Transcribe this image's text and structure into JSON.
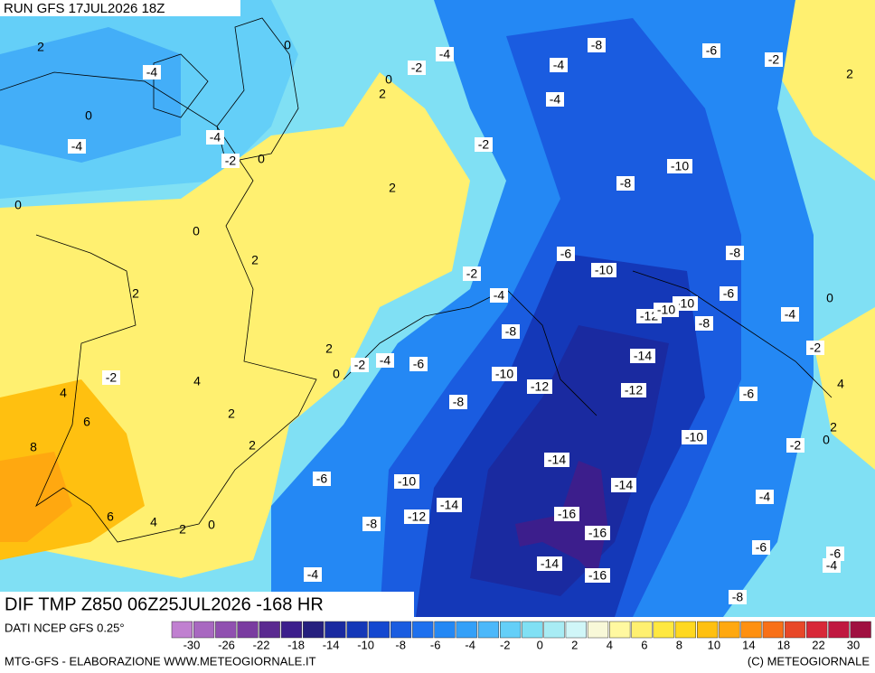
{
  "header": {
    "run": "RUN GFS 17JUL2026 18Z"
  },
  "map": {
    "title": "DIF TMP Z850 06Z25JUL2026 -168 HR",
    "contour_labels": [
      "2",
      "-4",
      "0",
      "-4",
      "-4",
      "-2",
      "0",
      "0",
      "0",
      "2",
      "-2",
      "-4",
      "-8",
      "-6",
      "-2",
      "2",
      "-4",
      "-4",
      "-2",
      "-10",
      "-8",
      "0",
      "2",
      "0",
      "2",
      "-6",
      "-8",
      "-10",
      "-2",
      "2",
      "-4",
      "-6",
      "-10",
      "-12",
      "-10",
      "0",
      "-4",
      "-8",
      "-8",
      "-2",
      "2",
      "-14",
      "0",
      "-2",
      "-4",
      "-6",
      "-10",
      "-2",
      "4",
      "4",
      "-12",
      "-12",
      "-6",
      "4",
      "2",
      "-8",
      "6",
      "2",
      "0",
      "-2",
      "-10",
      "2",
      "8",
      "-14",
      "-14",
      "-6",
      "-10",
      "-14",
      "-16",
      "-12",
      "-8",
      "6",
      "4",
      "2",
      "0",
      "-16",
      "-4",
      "-6",
      "-6",
      "-4",
      "-14",
      "-16",
      "-4",
      "-8"
    ]
  },
  "legend": {
    "source": "DATI NCEP GFS 0.25°",
    "colors": [
      "#c080d0",
      "#a868c0",
      "#9050b0",
      "#7a3ca0",
      "#5a2a90",
      "#3c1e8c",
      "#26207e",
      "#1a2aa0",
      "#1438b8",
      "#1448d0",
      "#1a5ce0",
      "#1e70ee",
      "#2488f4",
      "#34a0f8",
      "#4cb8fa",
      "#64cff8",
      "#80e0f4",
      "#a8ecf4",
      "#d0f6f8",
      "#f8f8d8",
      "#fff8a0",
      "#fff070",
      "#ffe840",
      "#ffd820",
      "#ffc010",
      "#ffa810",
      "#ff9010",
      "#f87018",
      "#e84828",
      "#d82838",
      "#c01840",
      "#a01040"
    ],
    "labels": [
      "-30",
      "-26",
      "-22",
      "-18",
      "-14",
      "-10",
      "-8",
      "-6",
      "-4",
      "-2",
      "0",
      "2",
      "4",
      "6",
      "8",
      "10",
      "14",
      "18",
      "22",
      "30"
    ]
  },
  "footer": {
    "credit": "MTG-GFS - ELABORAZIONE WWW.METEOGIORNALE.IT",
    "copyright": "(C) METEOGIORNALE"
  }
}
